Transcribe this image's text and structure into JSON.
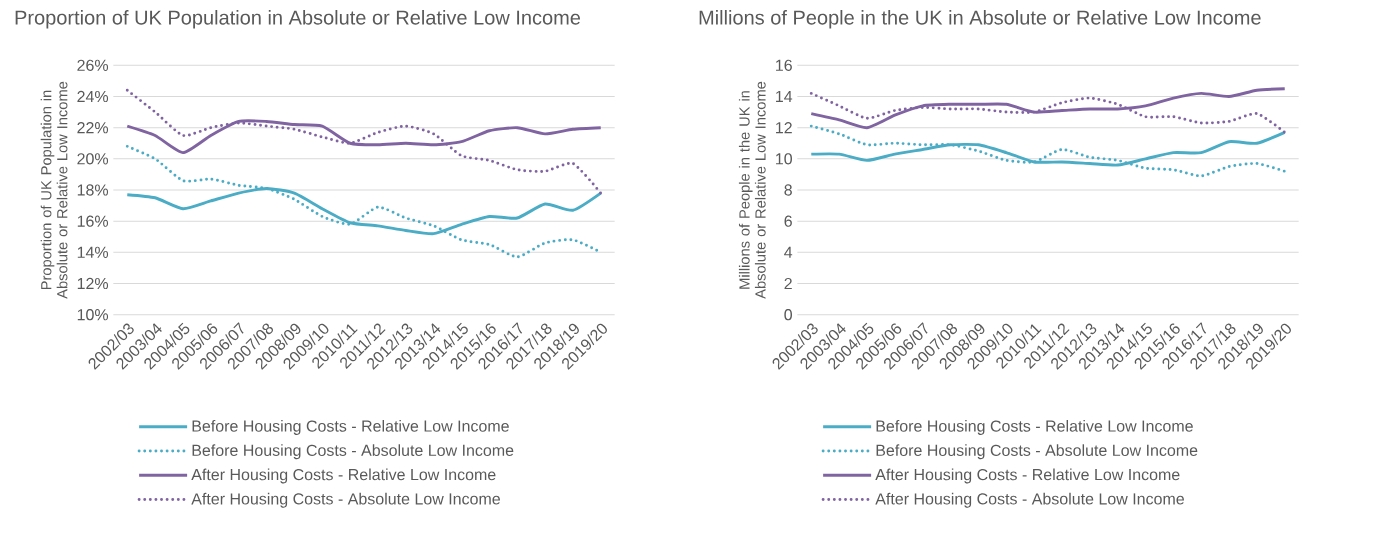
{
  "chart_data": [
    {
      "type": "line",
      "title": "Proportion of UK Population in Absolute or Relative Low Income",
      "ylabel": "Proportion of UK Population in Absolute or Relative Low Income",
      "categories": [
        "2002/03",
        "2003/04",
        "2004/05",
        "2005/06",
        "2006/07",
        "2007/08",
        "2008/09",
        "2009/10",
        "2010/11",
        "2011/12",
        "2012/13",
        "2013/14",
        "2014/15",
        "2015/16",
        "2016/17",
        "2017/18",
        "2018/19",
        "2019/20"
      ],
      "ylim": [
        10,
        26
      ],
      "yticks": [
        {
          "value": 10,
          "label": "10%"
        },
        {
          "value": 12,
          "label": "12%"
        },
        {
          "value": 14,
          "label": "14%"
        },
        {
          "value": 16,
          "label": "16%"
        },
        {
          "value": 18,
          "label": "18%"
        },
        {
          "value": 20,
          "label": "20%"
        },
        {
          "value": 22,
          "label": "22%"
        },
        {
          "value": 24,
          "label": "24%"
        },
        {
          "value": 26,
          "label": "26%"
        }
      ],
      "grid": "y",
      "legend": "bottom",
      "series": [
        {
          "name": "Before Housing Costs - Relative Low Income",
          "color": "#4bacc6",
          "line_style": "solid",
          "values": [
            17.7,
            17.5,
            16.8,
            17.3,
            17.8,
            18.1,
            17.8,
            16.8,
            15.9,
            15.7,
            15.4,
            15.2,
            15.8,
            16.3,
            16.2,
            17.1,
            16.7,
            17.8
          ]
        },
        {
          "name": "Before Housing Costs - Absolute Low Income",
          "color": "#4bacc6",
          "line_style": "dotted",
          "values": [
            20.8,
            20.0,
            18.6,
            18.7,
            18.3,
            18.1,
            17.4,
            16.3,
            15.8,
            16.9,
            16.2,
            15.7,
            14.8,
            14.5,
            13.7,
            14.6,
            14.8,
            14.0
          ]
        },
        {
          "name": "After Housing Costs - Relative Low Income",
          "color": "#8064a2",
          "line_style": "solid",
          "values": [
            22.1,
            21.5,
            20.4,
            21.5,
            22.4,
            22.4,
            22.2,
            22.1,
            21.0,
            20.9,
            21.0,
            20.9,
            21.1,
            21.8,
            22.0,
            21.6,
            21.9,
            22.0
          ]
        },
        {
          "name": "After Housing Costs - Absolute Low Income",
          "color": "#8064a2",
          "line_style": "dotted",
          "values": [
            24.4,
            23.0,
            21.5,
            22.0,
            22.3,
            22.1,
            21.9,
            21.4,
            21.0,
            21.7,
            22.1,
            21.6,
            20.2,
            19.9,
            19.3,
            19.2,
            19.7,
            17.8
          ]
        }
      ]
    },
    {
      "type": "line",
      "title": "Millions of People in the UK in Absolute or Relative Low Income",
      "ylabel": "Millions of People in the UK in Absolute or Relative Low Income",
      "categories": [
        "2002/03",
        "2003/04",
        "2004/05",
        "2005/06",
        "2006/07",
        "2007/08",
        "2008/09",
        "2009/10",
        "2010/11",
        "2011/12",
        "2012/13",
        "2013/14",
        "2014/15",
        "2015/16",
        "2016/17",
        "2017/18",
        "2018/19",
        "2019/20"
      ],
      "ylim": [
        0,
        16
      ],
      "yticks": [
        0,
        2,
        4,
        6,
        8,
        10,
        12,
        14,
        16
      ],
      "grid": "y",
      "legend": "bottom",
      "series": [
        {
          "name": "Before Housing Costs - Relative Low Income",
          "color": "#4bacc6",
          "line_style": "solid",
          "values": [
            10.3,
            10.3,
            9.9,
            10.3,
            10.6,
            10.9,
            10.9,
            10.4,
            9.8,
            9.8,
            9.7,
            9.6,
            10.0,
            10.4,
            10.4,
            11.1,
            11.0,
            11.7
          ]
        },
        {
          "name": "Before Housing Costs - Absolute Low Income",
          "color": "#4bacc6",
          "line_style": "dotted",
          "values": [
            12.1,
            11.6,
            10.9,
            11.0,
            10.9,
            10.9,
            10.5,
            9.9,
            9.8,
            10.6,
            10.1,
            9.9,
            9.4,
            9.3,
            8.9,
            9.5,
            9.7,
            9.2
          ]
        },
        {
          "name": "After Housing Costs - Relative Low Income",
          "color": "#8064a2",
          "line_style": "solid",
          "values": [
            12.9,
            12.5,
            12.0,
            12.8,
            13.4,
            13.5,
            13.5,
            13.5,
            13.0,
            13.1,
            13.2,
            13.2,
            13.4,
            13.9,
            14.2,
            14.0,
            14.4,
            14.5
          ]
        },
        {
          "name": "After Housing Costs - Absolute Low Income",
          "color": "#8064a2",
          "line_style": "dotted",
          "values": [
            14.2,
            13.4,
            12.6,
            13.1,
            13.3,
            13.2,
            13.2,
            13.0,
            13.0,
            13.6,
            13.9,
            13.5,
            12.7,
            12.7,
            12.3,
            12.4,
            12.9,
            11.7
          ]
        }
      ]
    }
  ]
}
